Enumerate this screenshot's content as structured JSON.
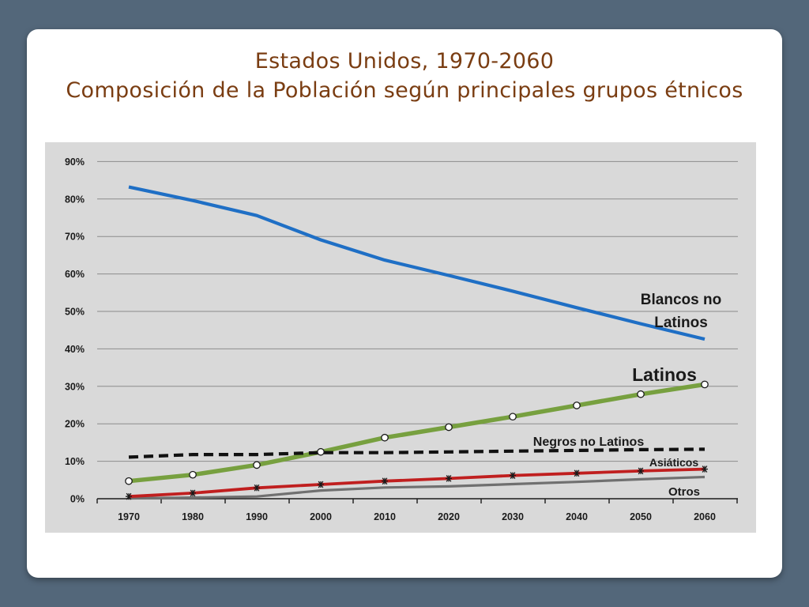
{
  "slide": {
    "title_line1": "Estados Unidos, 1970-2060",
    "title_line2": "Composición de la Población según principales grupos étnicos"
  },
  "colors": {
    "background": "#53677a",
    "title": "#7a3d12",
    "plot_area": "#d9d9d9",
    "blancos": "#1f6fc5",
    "latinos": "#77a03f",
    "negros": "#111111",
    "asiaticos": "#c01f1f",
    "otros": "#707070"
  },
  "chart_data": {
    "type": "line",
    "title": "",
    "xlabel": "",
    "ylabel": "",
    "categories": [
      "1970",
      "1980",
      "1990",
      "2000",
      "2010",
      "2020",
      "2030",
      "2040",
      "2050",
      "2060"
    ],
    "ylim": [
      0,
      90
    ],
    "y_ticks": [
      "0%",
      "10%",
      "20%",
      "30%",
      "40%",
      "50%",
      "60%",
      "70%",
      "80%",
      "90%"
    ],
    "grid": true,
    "legend": "inline labels at right",
    "series": [
      {
        "name": "Blancos no Latinos",
        "key": "blancos",
        "label_lines": [
          "Blancos no",
          "Latinos"
        ],
        "values": [
          83.2,
          79.6,
          75.6,
          69.1,
          63.7,
          59.6,
          55.4,
          51.0,
          46.7,
          42.6
        ]
      },
      {
        "name": "Latinos",
        "key": "latinos",
        "label_lines": [
          "Latinos"
        ],
        "values": [
          4.7,
          6.4,
          9.0,
          12.5,
          16.3,
          19.1,
          21.9,
          24.9,
          27.9,
          30.5
        ]
      },
      {
        "name": "Negros no Latinos",
        "key": "negros",
        "label_lines": [
          "Negros no Latinos"
        ],
        "values": [
          11.1,
          11.8,
          11.8,
          12.3,
          12.3,
          12.5,
          12.7,
          12.9,
          13.1,
          13.2
        ]
      },
      {
        "name": "Asiáticos",
        "key": "asiaticos",
        "label_lines": [
          "Asiáticos"
        ],
        "values": [
          0.6,
          1.5,
          2.9,
          3.8,
          4.7,
          5.4,
          6.2,
          6.8,
          7.4,
          7.9
        ]
      },
      {
        "name": "Otros",
        "key": "otros",
        "label_lines": [
          "Otros"
        ],
        "values": [
          0.1,
          0.3,
          0.6,
          2.2,
          3.0,
          3.3,
          3.9,
          4.5,
          5.2,
          5.8
        ]
      }
    ]
  }
}
